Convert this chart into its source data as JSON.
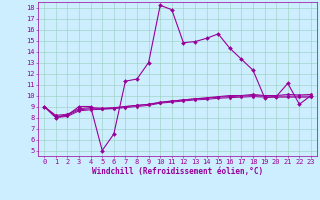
{
  "xlabel": "Windchill (Refroidissement éolien,°C)",
  "x_values": [
    0,
    1,
    2,
    3,
    4,
    5,
    6,
    7,
    8,
    9,
    10,
    11,
    12,
    13,
    14,
    15,
    16,
    17,
    18,
    19,
    20,
    21,
    22,
    23
  ],
  "line1_y": [
    9.0,
    8.0,
    8.2,
    9.0,
    9.0,
    5.0,
    6.5,
    11.3,
    11.5,
    13.0,
    18.2,
    17.8,
    14.8,
    14.9,
    15.2,
    15.6,
    14.3,
    13.3,
    12.3,
    9.8,
    9.9,
    11.1,
    9.2,
    10.0
  ],
  "line2_y": [
    9.0,
    8.2,
    8.3,
    8.8,
    8.9,
    8.85,
    8.9,
    9.0,
    9.1,
    9.2,
    9.4,
    9.5,
    9.6,
    9.7,
    9.8,
    9.9,
    10.0,
    10.0,
    10.1,
    10.0,
    10.0,
    10.1,
    10.05,
    10.1
  ],
  "line3_y": [
    9.0,
    8.1,
    8.2,
    8.7,
    8.8,
    8.8,
    8.85,
    9.0,
    9.1,
    9.2,
    9.35,
    9.5,
    9.6,
    9.7,
    9.75,
    9.85,
    9.9,
    9.95,
    10.0,
    9.95,
    9.95,
    9.95,
    9.95,
    9.95
  ],
  "line4_y": [
    9.0,
    8.0,
    8.1,
    8.6,
    8.7,
    8.75,
    8.8,
    8.9,
    9.0,
    9.1,
    9.3,
    9.4,
    9.5,
    9.6,
    9.65,
    9.75,
    9.8,
    9.85,
    9.9,
    9.85,
    9.85,
    9.85,
    9.85,
    9.85
  ],
  "line_color": "#990099",
  "bg_color": "#cceeff",
  "grid_color": "#99ccbb",
  "ylim": [
    4.5,
    18.5
  ],
  "xlim": [
    -0.5,
    23.5
  ],
  "yticks": [
    5,
    6,
    7,
    8,
    9,
    10,
    11,
    12,
    13,
    14,
    15,
    16,
    17,
    18
  ],
  "xticks": [
    0,
    1,
    2,
    3,
    4,
    5,
    6,
    7,
    8,
    9,
    10,
    11,
    12,
    13,
    14,
    15,
    16,
    17,
    18,
    19,
    20,
    21,
    22,
    23
  ],
  "tick_fontsize": 5.0,
  "xlabel_fontsize": 5.5
}
